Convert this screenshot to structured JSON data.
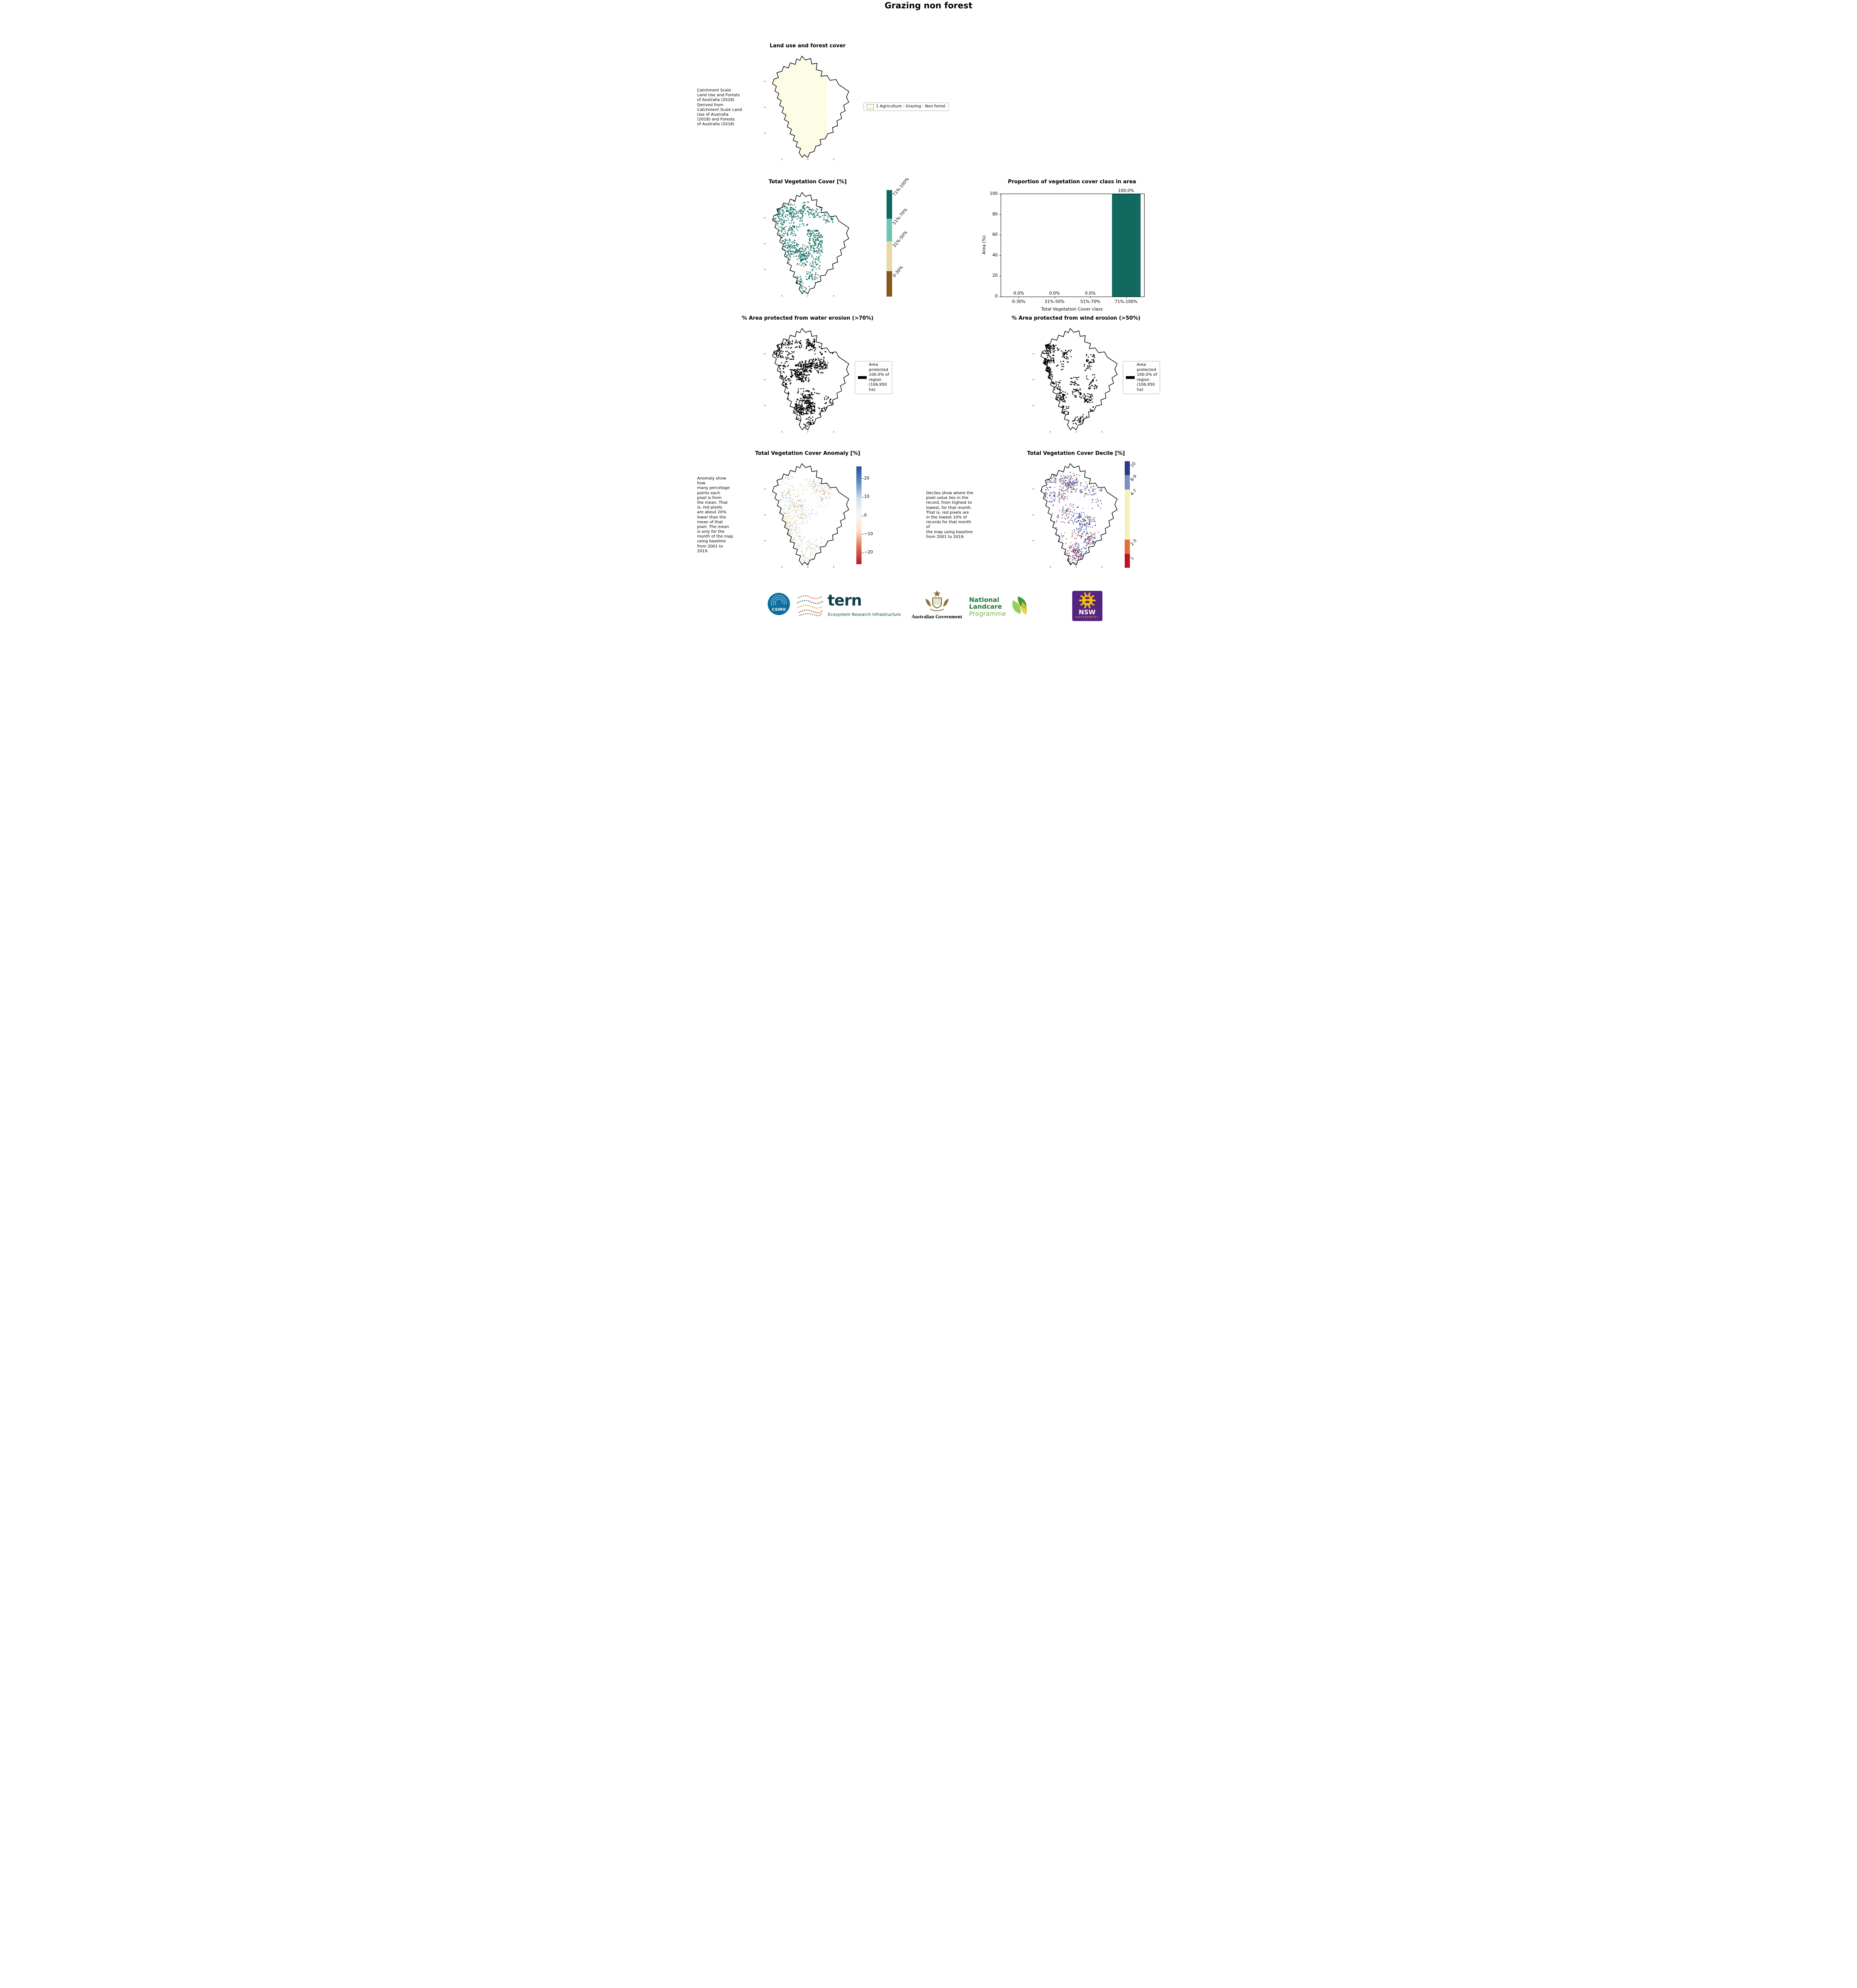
{
  "page_title": "Grazing non forest",
  "panels": {
    "land_use": {
      "title": "Land use and forest cover",
      "caption": " Catchment Scale\nLand Use and Forests\nof Australia (2018)\nDerived from\nCatchment Scale Land\nUse of Australia\n(2018) and Forests\nof Australia (2018)",
      "legend_label": "1 Agriculture - Grazing - Non forest",
      "fill_color": "#FDFCE5"
    },
    "tvc_map": {
      "title": "Total Vegetation Cover [%]",
      "dot_color": "#0c6a60",
      "colorbar": [
        {
          "label": "71%-100%",
          "color": "#0c6a60",
          "frac": 0.27
        },
        {
          "label": "51%-70%",
          "color": "#6fc5b5",
          "frac": 0.21
        },
        {
          "label": "31%-50%",
          "color": "#e9d8a6",
          "frac": 0.28
        },
        {
          "label": "0-30%",
          "color": "#8a551e",
          "frac": 0.24
        }
      ]
    },
    "water": {
      "title": "% Area protected from water erosion (>70%)",
      "legend_text": "Area\nprotected\n100.0% of\nregion\n(106,950\nha)",
      "dot_color": "#000000"
    },
    "wind": {
      "title": "% Area protected from wind erosion (>50%)",
      "legend_text": "Area\nprotected\n100.0% of\nregion\n(106,950\nha)",
      "dot_color": "#000000"
    },
    "anomaly": {
      "title": "Total Vegetation Cover Anomaly [%]",
      "caption": "Anomaly show how\nmany percetage\npoints each\npixel is from\nthe mean. That\nis, red pixels\nare about 20%\nlower than the\nmean of that\npixel. The mean\nis only for the\nmonth of the map\nusing baseline\nfrom 2001 to\n2019.",
      "colorbar_ticks": [
        "20",
        "10",
        "0",
        "−10",
        "−20"
      ],
      "gradient": [
        "#2a4d9b",
        "#5a8fc4",
        "#cfe3f0",
        "#f7f7f5",
        "#fbdcc6",
        "#e06a50",
        "#b01c2e"
      ],
      "dot_colors": [
        "#cfe6f3",
        "#e8f3f8",
        "#bcdcee",
        "#f9f0c0",
        "#f2c069",
        "#a9cfe6",
        "#e0effa",
        "#de7a43",
        "#cfe6f3",
        "#fdfbe8"
      ]
    },
    "decile": {
      "title": "Total Vegetation Cover Decile [%]",
      "caption": "Deciles show where the\npixel value lies in the\nrecord, from highest to\nlowest, for that month.\nThat is, red pixels are\nin the lowest 10% of\nrecords for that month of\nthe map using baseline\nfrom 2001 to 2019.",
      "colorbar": [
        {
          "label": "10",
          "color": "#2c3a8c",
          "frac": 0.13
        },
        {
          "label": "8-9",
          "color": "#7d90c3",
          "frac": 0.135
        },
        {
          "label": "4-7",
          "color": "#f6f1bc",
          "frac": 0.47
        },
        {
          "label": "2-3",
          "color": "#e2703c",
          "frac": 0.135
        },
        {
          "label": "1",
          "color": "#bc1226",
          "frac": 0.13
        }
      ],
      "dot_colors": [
        "#2e3c95",
        "#2e3c95",
        "#2e3c95",
        "#3a4a9e",
        "#6d82bd",
        "#2e3c95",
        "#e2703c",
        "#f3eebc",
        "#bc1226",
        "#2e3c95"
      ]
    }
  },
  "chart_data": {
    "type": "bar",
    "title": "Proportion of vegetation cover class in area",
    "categories": [
      "0-30%",
      "31%-50%",
      "51%-70%",
      "71%-100%"
    ],
    "values": [
      0.0,
      0.0,
      0.0,
      100.0
    ],
    "bar_labels": [
      "0.0%",
      "0.0%",
      "0.0%",
      "100.0%"
    ],
    "xlabel": "Total Vegetation Cover class",
    "ylabel": "Area (%)",
    "ylim": [
      0,
      100
    ],
    "yticks": [
      0,
      20,
      40,
      60,
      80,
      100
    ],
    "bar_color": "#11695f",
    "grid": false,
    "legend_position": "none"
  },
  "footer": {
    "csiro": "CSIRO",
    "tern": "tern",
    "tern_tagline": "Ecosystem Research Infrastructure",
    "aus_gov": "Australian Government",
    "landcare": [
      "National",
      "Landcare",
      "Programme"
    ],
    "nsw": "NSW",
    "nsw_sub": "GOVERNMENT",
    "colors": {
      "tern_teal": "#123f47",
      "landcare_green": "#1e7a34",
      "landcare_light_green": "#7ab648",
      "nsw_purple": "#542483",
      "nsw_yellow": "#f6c500",
      "csiro_blue": "#0e6f9e"
    }
  }
}
